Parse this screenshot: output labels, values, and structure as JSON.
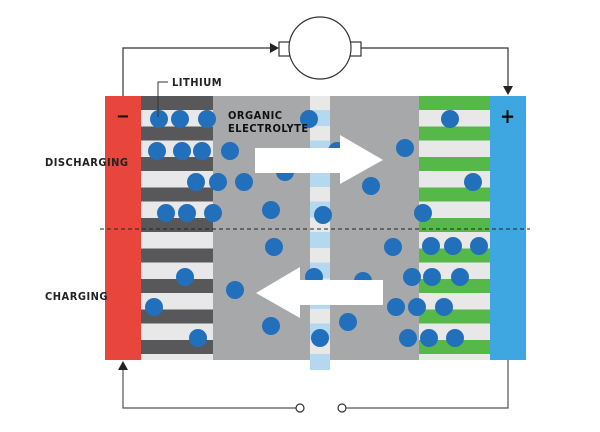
{
  "labels": {
    "lithium": "LITHIUM",
    "electrolyte_line1": "ORGANIC",
    "electrolyte_line2": "ELECTROLYTE",
    "discharging": "DISCHARGING",
    "charging": "CHARGING",
    "negative": "−",
    "positive": "+"
  },
  "colors": {
    "anode_terminal": "#e8453c",
    "cathode_terminal": "#3ea6e0",
    "anode_layer": "#58585a",
    "cathode_layer": "#55b848",
    "electrolyte": "#a7a8aa",
    "separator": "#b4d8f0",
    "lithium_ion": "#2270bb"
  },
  "icons": [
    "motor-icon",
    "arrow-right-icon",
    "arrow-left-icon",
    "switch-icon"
  ]
}
